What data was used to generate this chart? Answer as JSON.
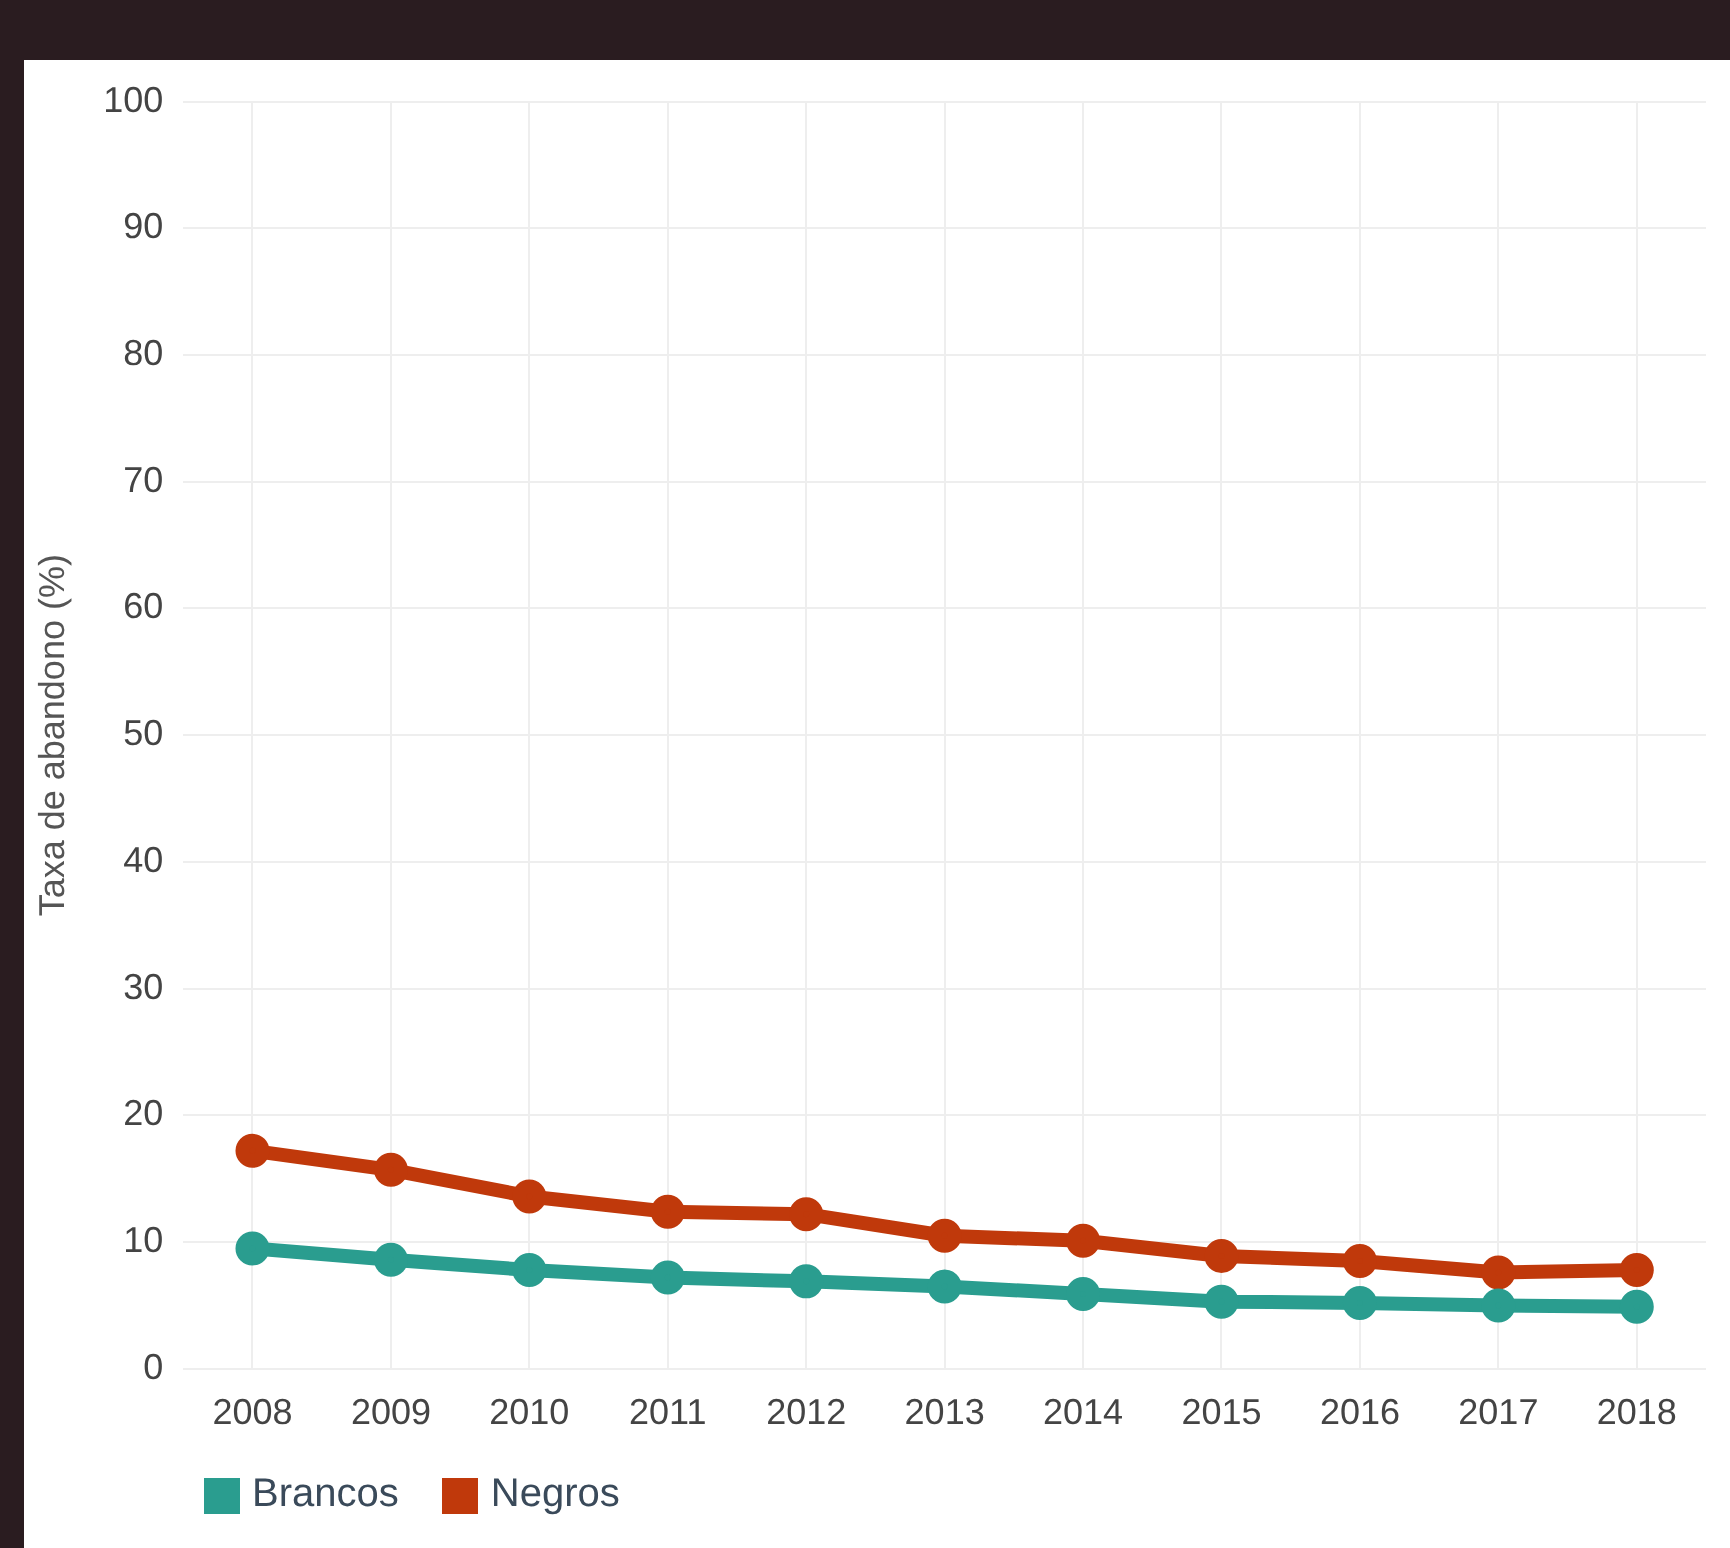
{
  "chart_data": {
    "type": "line",
    "ylabel": "Taxa de abandono (%)",
    "categories": [
      "2008",
      "2009",
      "2010",
      "2011",
      "2012",
      "2013",
      "2014",
      "2015",
      "2016",
      "2017",
      "2018"
    ],
    "series": [
      {
        "name": "Brancos",
        "color": "#2a9d8f",
        "values": [
          9.5,
          8.6,
          7.8,
          7.2,
          6.9,
          6.5,
          5.9,
          5.3,
          5.2,
          5.0,
          4.9
        ]
      },
      {
        "name": "Negros",
        "color": "#c0390b",
        "values": [
          17.2,
          15.7,
          13.6,
          12.4,
          12.2,
          10.5,
          10.1,
          8.9,
          8.5,
          7.6,
          7.8
        ]
      }
    ],
    "ylim": [
      0,
      100
    ],
    "yticks": [
      0,
      10,
      20,
      30,
      40,
      50,
      60,
      70,
      80,
      90,
      100
    ],
    "grid": true,
    "legend": "bottom left",
    "marker": "circle",
    "line_style": "solid"
  }
}
